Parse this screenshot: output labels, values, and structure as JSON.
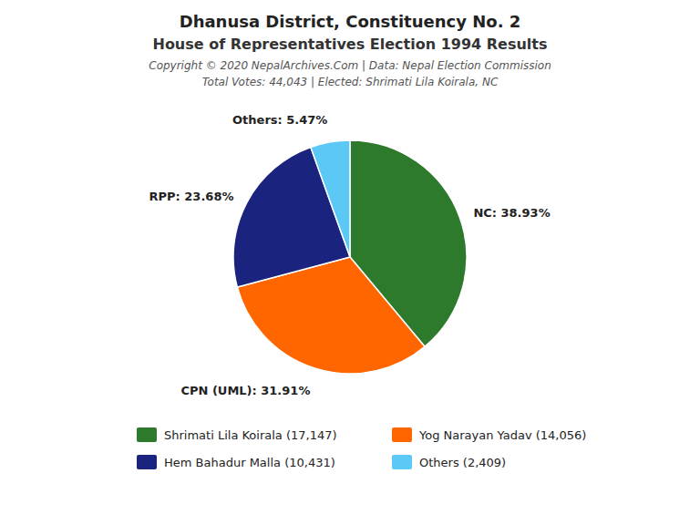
{
  "chart_data": {
    "type": "pie",
    "title": "Dhanusa District, Constituency No. 2",
    "subtitle": "House of Representatives Election 1994 Results",
    "annotations": [
      "Copyright © 2020 NepalArchives.Com | Data: Nepal Election Commission",
      "Total Votes: 44,043 | Elected: Shrimati Lila Koirala, NC"
    ],
    "values": [
      38.93,
      31.91,
      23.68,
      5.47
    ],
    "value_labels": [
      "NC: 38.93%",
      "CPN (UML): 31.91%",
      "RPP: 23.68%",
      "Others: 5.47%"
    ],
    "colors": [
      "#2d7a2d",
      "#FF6600",
      "#1a237e",
      "#5BC8F5"
    ],
    "data_labels": true,
    "legend": "bottom",
    "legend_labels": [
      "Shrimati Lila Koirala (17,147)",
      "Yog Narayan Yadav (14,056)",
      "Hem Bahadur Malla (10,431)",
      "Others (2,409)"
    ]
  }
}
